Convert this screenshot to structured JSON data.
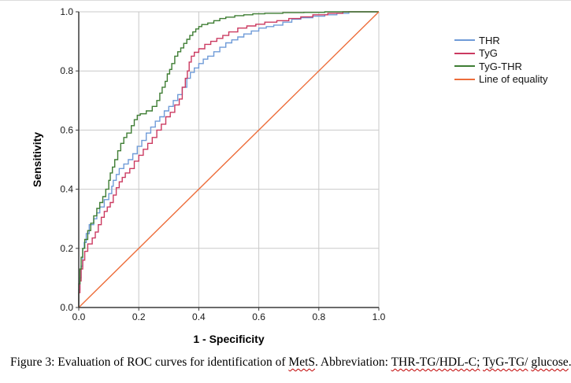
{
  "figure": {
    "caption_segments": [
      {
        "text": "Figure 3: Evaluation of ROC curves for identification of ",
        "wavy": false
      },
      {
        "text": "MetS",
        "wavy": true
      },
      {
        "text": ". Abbreviation: ",
        "wavy": false
      },
      {
        "text": "THR-TG/HDL-C;",
        "wavy": true
      },
      {
        "text": " ",
        "wavy": false
      },
      {
        "text": "TyG-TG/",
        "wavy": true
      },
      {
        "text": " ",
        "wavy": false
      },
      {
        "text": "glucose",
        "wavy": true
      },
      {
        "text": ".",
        "wavy": false
      }
    ]
  },
  "chart_data": {
    "type": "line",
    "subtype": "roc-step-curves",
    "title": "",
    "xlabel": "1 - Specificity",
    "ylabel": "Sensitivity",
    "xlim": [
      0,
      1
    ],
    "ylim": [
      0,
      1
    ],
    "grid": true,
    "legend_position": "right",
    "xticks": [
      0,
      0.2,
      0.4,
      0.6,
      0.8,
      1.0
    ],
    "yticks": [
      0,
      0.2,
      0.4,
      0.6,
      0.8,
      1.0
    ],
    "xtick_labels": [
      "0.0",
      "0.2",
      "0.4",
      "0.6",
      "0.8",
      "1.0"
    ],
    "ytick_labels": [
      "0.0",
      "0.2",
      "0.4",
      "0.6",
      "0.8",
      "1.0"
    ],
    "colors": {
      "axis": "#3a3a3a",
      "grid": "#c9c9c9",
      "tick_text": "#1a1a1a",
      "spellcheck_underline": "#c00000"
    },
    "series": [
      {
        "name": "THR",
        "color": "#6f9bd8",
        "style": "step",
        "points": [
          [
            0,
            0
          ],
          [
            0,
            0.03
          ],
          [
            0.004,
            0.06
          ],
          [
            0.008,
            0.1
          ],
          [
            0.013,
            0.14
          ],
          [
            0.018,
            0.2
          ],
          [
            0.025,
            0.22
          ],
          [
            0.035,
            0.25
          ],
          [
            0.05,
            0.28
          ],
          [
            0.06,
            0.3
          ],
          [
            0.07,
            0.32
          ],
          [
            0.085,
            0.34
          ],
          [
            0.1,
            0.365
          ],
          [
            0.11,
            0.385
          ],
          [
            0.115,
            0.41
          ],
          [
            0.125,
            0.43
          ],
          [
            0.135,
            0.45
          ],
          [
            0.15,
            0.47
          ],
          [
            0.165,
            0.485
          ],
          [
            0.18,
            0.5
          ],
          [
            0.195,
            0.52
          ],
          [
            0.21,
            0.545
          ],
          [
            0.225,
            0.565
          ],
          [
            0.24,
            0.59
          ],
          [
            0.255,
            0.61
          ],
          [
            0.27,
            0.63
          ],
          [
            0.285,
            0.645
          ],
          [
            0.3,
            0.665
          ],
          [
            0.315,
            0.68
          ],
          [
            0.33,
            0.7
          ],
          [
            0.345,
            0.72
          ],
          [
            0.36,
            0.745
          ],
          [
            0.372,
            0.775
          ],
          [
            0.385,
            0.795
          ],
          [
            0.4,
            0.81
          ],
          [
            0.415,
            0.825
          ],
          [
            0.43,
            0.84
          ],
          [
            0.45,
            0.85
          ],
          [
            0.47,
            0.865
          ],
          [
            0.49,
            0.88
          ],
          [
            0.51,
            0.895
          ],
          [
            0.53,
            0.905
          ],
          [
            0.55,
            0.915
          ],
          [
            0.575,
            0.925
          ],
          [
            0.6,
            0.935
          ],
          [
            0.625,
            0.945
          ],
          [
            0.65,
            0.95
          ],
          [
            0.68,
            0.955
          ],
          [
            0.71,
            0.965
          ],
          [
            0.74,
            0.975
          ],
          [
            0.78,
            0.98
          ],
          [
            0.82,
            0.985
          ],
          [
            0.86,
            0.99
          ],
          [
            0.9,
            0.995
          ],
          [
            0.93,
            1
          ],
          [
            1,
            1
          ]
        ]
      },
      {
        "name": "TyG",
        "color": "#cb3a60",
        "style": "step",
        "points": [
          [
            0,
            0
          ],
          [
            0,
            0.025
          ],
          [
            0.004,
            0.05
          ],
          [
            0.008,
            0.09
          ],
          [
            0.013,
            0.13
          ],
          [
            0.02,
            0.16
          ],
          [
            0.03,
            0.19
          ],
          [
            0.045,
            0.215
          ],
          [
            0.055,
            0.235
          ],
          [
            0.065,
            0.255
          ],
          [
            0.075,
            0.28
          ],
          [
            0.085,
            0.305
          ],
          [
            0.095,
            0.325
          ],
          [
            0.105,
            0.34
          ],
          [
            0.115,
            0.355
          ],
          [
            0.125,
            0.38
          ],
          [
            0.135,
            0.405
          ],
          [
            0.145,
            0.425
          ],
          [
            0.155,
            0.44
          ],
          [
            0.17,
            0.455
          ],
          [
            0.185,
            0.47
          ],
          [
            0.2,
            0.495
          ],
          [
            0.215,
            0.515
          ],
          [
            0.23,
            0.535
          ],
          [
            0.245,
            0.555
          ],
          [
            0.26,
            0.575
          ],
          [
            0.275,
            0.6
          ],
          [
            0.29,
            0.62
          ],
          [
            0.305,
            0.645
          ],
          [
            0.32,
            0.66
          ],
          [
            0.335,
            0.685
          ],
          [
            0.345,
            0.705
          ],
          [
            0.355,
            0.745
          ],
          [
            0.362,
            0.775
          ],
          [
            0.368,
            0.8
          ],
          [
            0.375,
            0.83
          ],
          [
            0.385,
            0.85
          ],
          [
            0.4,
            0.863
          ],
          [
            0.42,
            0.875
          ],
          [
            0.44,
            0.89
          ],
          [
            0.46,
            0.9
          ],
          [
            0.48,
            0.91
          ],
          [
            0.5,
            0.92
          ],
          [
            0.53,
            0.932
          ],
          [
            0.56,
            0.945
          ],
          [
            0.59,
            0.952
          ],
          [
            0.62,
            0.958
          ],
          [
            0.66,
            0.965
          ],
          [
            0.7,
            0.97
          ],
          [
            0.74,
            0.977
          ],
          [
            0.78,
            0.983
          ],
          [
            0.83,
            0.99
          ],
          [
            0.88,
            0.995
          ],
          [
            0.91,
            1
          ],
          [
            1,
            1
          ]
        ]
      },
      {
        "name": "TyG-THR",
        "color": "#3e7d33",
        "style": "step",
        "points": [
          [
            0,
            0
          ],
          [
            0,
            0.04
          ],
          [
            0.004,
            0.08
          ],
          [
            0.008,
            0.13
          ],
          [
            0.013,
            0.17
          ],
          [
            0.02,
            0.2
          ],
          [
            0.03,
            0.23
          ],
          [
            0.04,
            0.26
          ],
          [
            0.05,
            0.285
          ],
          [
            0.06,
            0.31
          ],
          [
            0.07,
            0.335
          ],
          [
            0.08,
            0.355
          ],
          [
            0.09,
            0.375
          ],
          [
            0.1,
            0.4
          ],
          [
            0.105,
            0.43
          ],
          [
            0.112,
            0.455
          ],
          [
            0.12,
            0.475
          ],
          [
            0.13,
            0.5
          ],
          [
            0.14,
            0.53
          ],
          [
            0.15,
            0.555
          ],
          [
            0.16,
            0.575
          ],
          [
            0.175,
            0.59
          ],
          [
            0.185,
            0.615
          ],
          [
            0.195,
            0.635
          ],
          [
            0.205,
            0.65
          ],
          [
            0.225,
            0.655
          ],
          [
            0.245,
            0.665
          ],
          [
            0.26,
            0.68
          ],
          [
            0.27,
            0.7
          ],
          [
            0.278,
            0.725
          ],
          [
            0.288,
            0.745
          ],
          [
            0.295,
            0.765
          ],
          [
            0.303,
            0.79
          ],
          [
            0.31,
            0.805
          ],
          [
            0.32,
            0.825
          ],
          [
            0.33,
            0.85
          ],
          [
            0.34,
            0.865
          ],
          [
            0.35,
            0.878
          ],
          [
            0.36,
            0.893
          ],
          [
            0.37,
            0.907
          ],
          [
            0.38,
            0.92
          ],
          [
            0.39,
            0.932
          ],
          [
            0.4,
            0.942
          ],
          [
            0.41,
            0.95
          ],
          [
            0.43,
            0.957
          ],
          [
            0.45,
            0.962
          ],
          [
            0.47,
            0.97
          ],
          [
            0.49,
            0.977
          ],
          [
            0.52,
            0.982
          ],
          [
            0.55,
            0.987
          ],
          [
            0.58,
            0.99
          ],
          [
            0.62,
            0.993
          ],
          [
            0.68,
            0.995
          ],
          [
            0.75,
            0.997
          ],
          [
            0.82,
            0.998
          ],
          [
            0.88,
            1
          ],
          [
            1,
            1
          ]
        ]
      },
      {
        "name": "Line of equality",
        "color": "#ed6d3a",
        "style": "straight",
        "points": [
          [
            0,
            0
          ],
          [
            1,
            1
          ]
        ]
      }
    ]
  }
}
